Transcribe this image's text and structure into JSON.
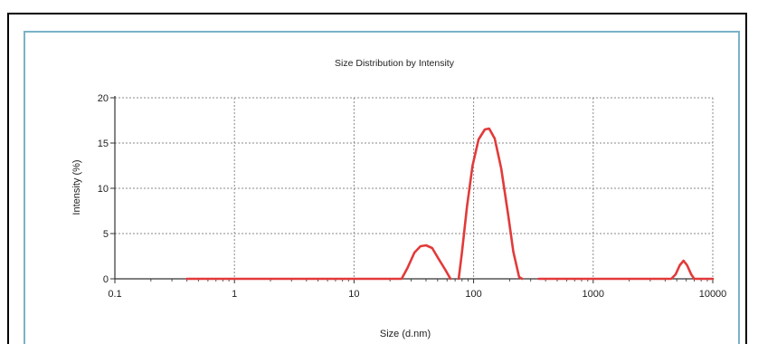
{
  "chart_data": {
    "type": "line",
    "title": "Size Distribution by Intensity",
    "xlabel": "Size (d.nm)",
    "ylabel": "Intensity (%)",
    "x_scale": "log",
    "xlim": [
      0.1,
      10000
    ],
    "ylim": [
      0,
      20
    ],
    "x_ticks": [
      "0.1",
      "1",
      "10",
      "100",
      "1000",
      "10000"
    ],
    "y_ticks": [
      "0",
      "5",
      "10",
      "15",
      "20"
    ],
    "grid": true,
    "legend": "none",
    "series_color": "#e23a3a",
    "series": [
      {
        "x": [
          0.4,
          25,
          28,
          32,
          36,
          40,
          45,
          51,
          58,
          64
        ],
        "values": [
          0,
          0,
          1.2,
          2.9,
          3.6,
          3.7,
          3.4,
          2.2,
          1.0,
          0
        ]
      },
      {
        "x": [
          75,
          80,
          88,
          98,
          110,
          124,
          135,
          150,
          170,
          195,
          215,
          240,
          255
        ],
        "values": [
          0,
          3.0,
          8.0,
          12.5,
          15.4,
          16.5,
          16.6,
          15.5,
          12.2,
          7.0,
          3.0,
          0.2,
          0
        ]
      },
      {
        "x": [
          350,
          4500,
          4900,
          5300,
          5700,
          6100,
          6600,
          7000,
          10000
        ],
        "values": [
          0,
          0,
          0.5,
          1.5,
          2.0,
          1.5,
          0.5,
          0,
          0
        ]
      }
    ]
  }
}
